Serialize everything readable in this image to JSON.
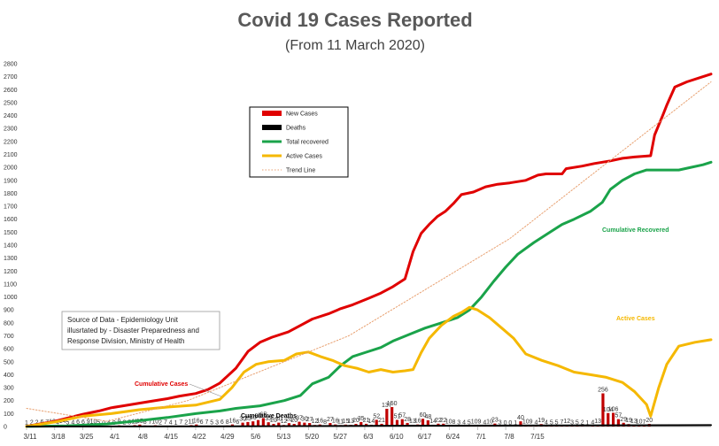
{
  "chart_data": {
    "type": "line",
    "title": "Covid 19 Cases Reported",
    "subtitle": "(From 11 March 2020)",
    "ylim": [
      0,
      2800
    ],
    "yticks": [
      0,
      100,
      200,
      300,
      400,
      500,
      600,
      700,
      800,
      900,
      1000,
      1100,
      1200,
      1300,
      1400,
      1500,
      1600,
      1700,
      1800,
      1900,
      2000,
      2100,
      2200,
      2300,
      2400,
      2500,
      2600,
      2700,
      2800
    ],
    "xticks": [
      "3/11",
      "3/18",
      "3/25",
      "4/1",
      "4/8",
      "4/15",
      "4/22",
      "4/29",
      "5/6",
      "5/13",
      "5/20",
      "5/27",
      "6/3",
      "6/10",
      "6/17",
      "6/24",
      "7/1",
      "7/8",
      "7/15"
    ],
    "day_count": 133,
    "grid": false,
    "legend_position": "top-center",
    "legend": [
      {
        "label": "New Cases",
        "color": "#e00000",
        "kind": "bar"
      },
      {
        "label": "Deaths",
        "color": "#000000",
        "kind": "bar"
      },
      {
        "label": "Total recovered",
        "color": "#1aa34a",
        "kind": "line"
      },
      {
        "label": "Active Cases",
        "color": "#f5b800",
        "kind": "line"
      },
      {
        "label": "Trend Line",
        "color": "#e8a070",
        "kind": "dotted"
      }
    ],
    "series": [
      {
        "name": "Cumulative Cases",
        "color": "#e00000",
        "kind": "line",
        "points": [
          [
            0,
            2
          ],
          [
            7,
            40
          ],
          [
            14,
            95
          ],
          [
            18,
            120
          ],
          [
            21,
            145
          ],
          [
            24,
            160
          ],
          [
            28,
            180
          ],
          [
            31,
            195
          ],
          [
            35,
            215
          ],
          [
            38,
            235
          ],
          [
            42,
            255
          ],
          [
            45,
            285
          ],
          [
            48,
            335
          ],
          [
            52,
            450
          ],
          [
            55,
            580
          ],
          [
            58,
            650
          ],
          [
            61,
            690
          ],
          [
            65,
            730
          ],
          [
            68,
            780
          ],
          [
            71,
            830
          ],
          [
            75,
            870
          ],
          [
            78,
            910
          ],
          [
            81,
            940
          ],
          [
            85,
            990
          ],
          [
            88,
            1030
          ],
          [
            91,
            1080
          ],
          [
            94,
            1140
          ],
          [
            96,
            1350
          ],
          [
            98,
            1490
          ],
          [
            100,
            1560
          ],
          [
            102,
            1620
          ],
          [
            104,
            1660
          ],
          [
            106,
            1720
          ],
          [
            108,
            1790
          ],
          [
            111,
            1810
          ],
          [
            114,
            1850
          ],
          [
            117,
            1870
          ],
          [
            120,
            1880
          ],
          [
            124,
            1900
          ],
          [
            127,
            1940
          ],
          [
            129,
            1950
          ],
          [
            133,
            1950
          ],
          [
            134,
            1990
          ],
          [
            138,
            2010
          ],
          [
            141,
            2030
          ],
          [
            145,
            2050
          ],
          [
            148,
            2070
          ],
          [
            151,
            2080
          ],
          [
            155,
            2090
          ],
          [
            156,
            2250
          ],
          [
            158,
            2400
          ],
          [
            159,
            2480
          ],
          [
            161,
            2620
          ],
          [
            164,
            2660
          ],
          [
            167,
            2690
          ],
          [
            170,
            2720
          ]
        ]
      },
      {
        "name": "Cumulative Recovered",
        "color": "#1aa34a",
        "kind": "line",
        "points": [
          [
            0,
            1
          ],
          [
            10,
            5
          ],
          [
            20,
            20
          ],
          [
            28,
            45
          ],
          [
            35,
            70
          ],
          [
            42,
            100
          ],
          [
            48,
            120
          ],
          [
            52,
            140
          ],
          [
            58,
            160
          ],
          [
            64,
            200
          ],
          [
            68,
            240
          ],
          [
            71,
            330
          ],
          [
            75,
            380
          ],
          [
            78,
            470
          ],
          [
            81,
            540
          ],
          [
            84,
            570
          ],
          [
            88,
            610
          ],
          [
            91,
            660
          ],
          [
            95,
            710
          ],
          [
            99,
            760
          ],
          [
            103,
            800
          ],
          [
            107,
            840
          ],
          [
            110,
            900
          ],
          [
            113,
            1000
          ],
          [
            116,
            1120
          ],
          [
            119,
            1230
          ],
          [
            122,
            1330
          ],
          [
            126,
            1420
          ],
          [
            130,
            1500
          ],
          [
            133,
            1560
          ],
          [
            136,
            1600
          ],
          [
            140,
            1660
          ],
          [
            143,
            1730
          ],
          [
            145,
            1830
          ],
          [
            148,
            1900
          ],
          [
            151,
            1950
          ],
          [
            154,
            1980
          ],
          [
            158,
            1980
          ],
          [
            162,
            1980
          ],
          [
            165,
            2000
          ],
          [
            168,
            2020
          ],
          [
            170,
            2040
          ]
        ]
      },
      {
        "name": "Active Cases",
        "color": "#f5b800",
        "kind": "line",
        "points": [
          [
            0,
            1
          ],
          [
            7,
            35
          ],
          [
            14,
            80
          ],
          [
            21,
            100
          ],
          [
            28,
            130
          ],
          [
            35,
            150
          ],
          [
            42,
            165
          ],
          [
            48,
            210
          ],
          [
            51,
            300
          ],
          [
            54,
            420
          ],
          [
            57,
            480
          ],
          [
            60,
            500
          ],
          [
            64,
            510
          ],
          [
            67,
            560
          ],
          [
            70,
            575
          ],
          [
            73,
            540
          ],
          [
            76,
            510
          ],
          [
            79,
            470
          ],
          [
            82,
            450
          ],
          [
            85,
            420
          ],
          [
            88,
            440
          ],
          [
            91,
            420
          ],
          [
            94,
            430
          ],
          [
            96,
            440
          ],
          [
            98,
            570
          ],
          [
            100,
            680
          ],
          [
            103,
            780
          ],
          [
            106,
            850
          ],
          [
            108,
            880
          ],
          [
            110,
            920
          ],
          [
            112,
            900
          ],
          [
            115,
            840
          ],
          [
            118,
            760
          ],
          [
            121,
            680
          ],
          [
            124,
            560
          ],
          [
            128,
            510
          ],
          [
            132,
            470
          ],
          [
            136,
            420
          ],
          [
            140,
            400
          ],
          [
            144,
            380
          ],
          [
            148,
            340
          ],
          [
            151,
            270
          ],
          [
            154,
            170
          ],
          [
            155,
            80
          ],
          [
            157,
            300
          ],
          [
            159,
            480
          ],
          [
            162,
            620
          ],
          [
            166,
            650
          ],
          [
            170,
            670
          ]
        ]
      },
      {
        "name": "Cumulative Deaths",
        "color": "#000000",
        "kind": "line",
        "points": [
          [
            0,
            0
          ],
          [
            50,
            2
          ],
          [
            100,
            7
          ],
          [
            170,
            11
          ]
        ]
      },
      {
        "name": "Trend Line",
        "color": "#e8a070",
        "kind": "dotted",
        "points": [
          [
            0,
            140
          ],
          [
            20,
            40
          ],
          [
            40,
            200
          ],
          [
            80,
            700
          ],
          [
            120,
            1450
          ],
          [
            170,
            2660
          ]
        ]
      }
    ],
    "daily_new_cases": [
      [
        0,
        1
      ],
      [
        1,
        2
      ],
      [
        2,
        2
      ],
      [
        3,
        6
      ],
      [
        4,
        7
      ],
      [
        5,
        10
      ],
      [
        6,
        4
      ],
      [
        7,
        14
      ],
      [
        8,
        5
      ],
      [
        9,
        4
      ],
      [
        10,
        6
      ],
      [
        11,
        6
      ],
      [
        12,
        9
      ],
      [
        13,
        10
      ],
      [
        14,
        5
      ],
      [
        15,
        0
      ],
      [
        16,
        4
      ],
      [
        17,
        0
      ],
      [
        18,
        9
      ],
      [
        19,
        2
      ],
      [
        20,
        5
      ],
      [
        21,
        11
      ],
      [
        22,
        15
      ],
      [
        23,
        8
      ],
      [
        24,
        7
      ],
      [
        25,
        10
      ],
      [
        26,
        2
      ],
      [
        27,
        7
      ],
      [
        28,
        4
      ],
      [
        29,
        1
      ],
      [
        30,
        7
      ],
      [
        31,
        2
      ],
      [
        32,
        11
      ],
      [
        33,
        16
      ],
      [
        34,
        6
      ],
      [
        35,
        7
      ],
      [
        36,
        5
      ],
      [
        37,
        3
      ],
      [
        38,
        6
      ],
      [
        39,
        8
      ],
      [
        40,
        16
      ],
      [
        41,
        6
      ],
      [
        42,
        30
      ],
      [
        43,
        35
      ],
      [
        44,
        40
      ],
      [
        45,
        50
      ],
      [
        46,
        65
      ],
      [
        47,
        33
      ],
      [
        48,
        20
      ],
      [
        49,
        30
      ],
      [
        50,
        12
      ],
      [
        51,
        26
      ],
      [
        52,
        20
      ],
      [
        53,
        37
      ],
      [
        54,
        30
      ],
      [
        55,
        27
      ],
      [
        56,
        12
      ],
      [
        57,
        16
      ],
      [
        58,
        8
      ],
      [
        59,
        27
      ],
      [
        60,
        16
      ],
      [
        61,
        11
      ],
      [
        62,
        15
      ],
      [
        63,
        13
      ],
      [
        64,
        20
      ],
      [
        65,
        35
      ],
      [
        66,
        21
      ],
      [
        67,
        14
      ],
      [
        68,
        52
      ],
      [
        69,
        21
      ],
      [
        70,
        137
      ],
      [
        71,
        150
      ],
      [
        72,
        51
      ],
      [
        73,
        57
      ],
      [
        74,
        28
      ],
      [
        75,
        13
      ],
      [
        76,
        16
      ],
      [
        77,
        60
      ],
      [
        78,
        48
      ],
      [
        79,
        14
      ],
      [
        80,
        22
      ],
      [
        81,
        22
      ],
      [
        82,
        10
      ],
      [
        83,
        8
      ],
      [
        84,
        3
      ],
      [
        85,
        4
      ],
      [
        86,
        5
      ],
      [
        87,
        10
      ],
      [
        88,
        9
      ],
      [
        89,
        4
      ],
      [
        90,
        10
      ],
      [
        91,
        23
      ],
      [
        92,
        3
      ],
      [
        93,
        0
      ],
      [
        94,
        0
      ],
      [
        95,
        1
      ],
      [
        96,
        40
      ],
      [
        97,
        10
      ],
      [
        98,
        9
      ],
      [
        99,
        4
      ],
      [
        100,
        19
      ],
      [
        101,
        4
      ],
      [
        102,
        5
      ],
      [
        103,
        5
      ],
      [
        104,
        7
      ],
      [
        105,
        12
      ],
      [
        106,
        3
      ],
      [
        107,
        5
      ],
      [
        108,
        2
      ],
      [
        109,
        1
      ],
      [
        110,
        4
      ],
      [
        111,
        13
      ],
      [
        112,
        256
      ],
      [
        113,
        104
      ],
      [
        114,
        106
      ],
      [
        115,
        57
      ],
      [
        116,
        29
      ],
      [
        117,
        19
      ],
      [
        118,
        13
      ],
      [
        119,
        10
      ],
      [
        120,
        7
      ],
      [
        121,
        20
      ]
    ],
    "annotations": [
      {
        "text": "Cumulative Cases",
        "color": "#e00000"
      },
      {
        "text": "Cumulative Deaths",
        "color": "#000000"
      },
      {
        "text": "Cumulative Recovered",
        "color": "#1aa34a"
      },
      {
        "text": "Active Cases",
        "color": "#f5b800"
      }
    ],
    "source_note": [
      "Source of Data - Epidemiology Unit",
      "illusrtated by - Disaster Preparedness and",
      "Response Division, Ministry of Health"
    ]
  }
}
